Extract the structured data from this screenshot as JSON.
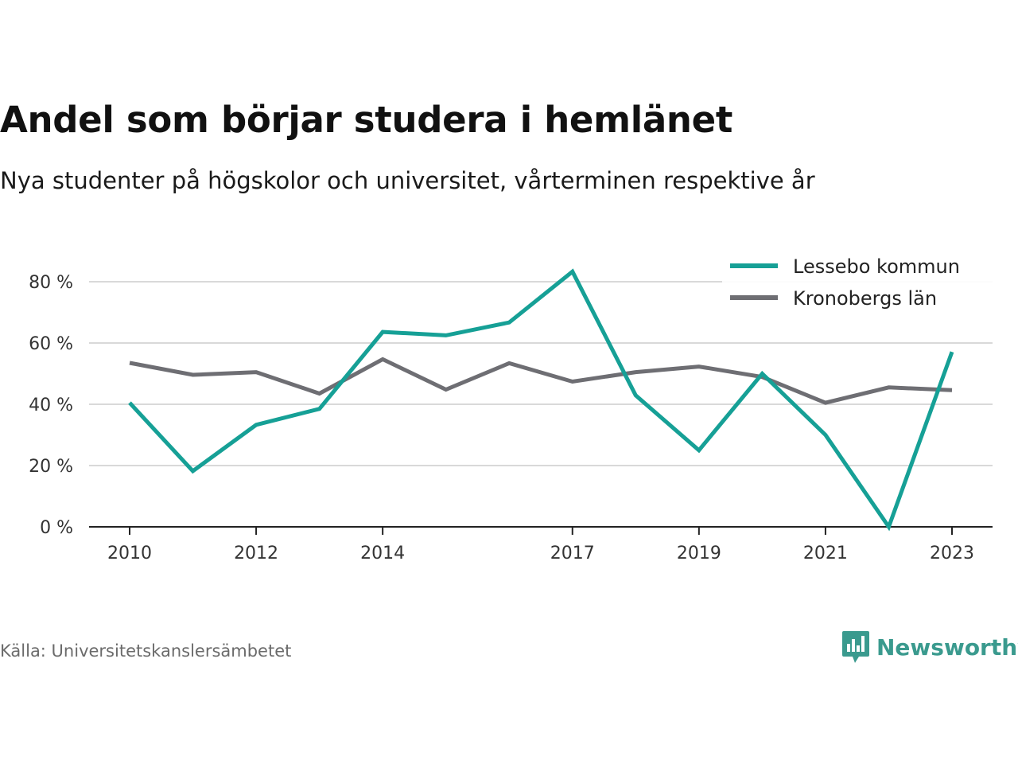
{
  "title": "Andel som börjar studera i hemlänet",
  "subtitle": "Nya studenter på högskolor och universitet, vårterminen respektive år",
  "source": "Källa: Universitetskanslersämbetet",
  "brand": {
    "name": "Newsworthy",
    "icon": "newsworthy-logo-icon",
    "color": "#3a9a8e"
  },
  "chart_data": {
    "type": "line",
    "title": "Andel som börjar studera i hemlänet",
    "xlabel": "",
    "ylabel": "",
    "x": [
      2010,
      2011,
      2012,
      2013,
      2014,
      2015,
      2016,
      2017,
      2018,
      2019,
      2020,
      2021,
      2022,
      2023
    ],
    "x_ticks": [
      2010,
      2012,
      2014,
      2017,
      2019,
      2021,
      2023
    ],
    "y_ticks": [
      0,
      20,
      40,
      60,
      80
    ],
    "y_tick_labels": [
      "0 %",
      "20 %",
      "40 %",
      "60 %",
      "80 %"
    ],
    "ylim": [
      0,
      90
    ],
    "grid": true,
    "legend_position": "top-right",
    "series": [
      {
        "name": "Lessebo kommun",
        "color": "#16a096",
        "values": [
          40.5,
          18.2,
          33.3,
          38.5,
          63.6,
          62.5,
          66.7,
          83.3,
          42.9,
          25.0,
          50.0,
          30.0,
          0.0,
          57.1
        ]
      },
      {
        "name": "Kronobergs län",
        "color": "#6e6e73",
        "values": [
          53.5,
          49.6,
          50.5,
          43.5,
          54.7,
          44.8,
          53.4,
          47.4,
          50.5,
          52.3,
          48.9,
          40.5,
          45.5,
          44.6
        ]
      }
    ]
  }
}
